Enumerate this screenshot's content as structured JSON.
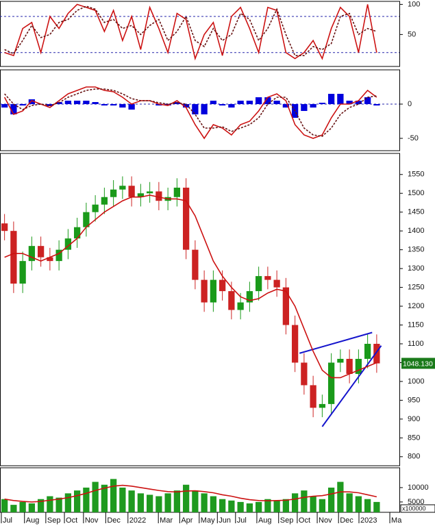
{
  "chart_data": [
    {
      "type": "line",
      "x": [
        1,
        3,
        5,
        7,
        9,
        11,
        13,
        15,
        17,
        19,
        21,
        23,
        25,
        27,
        29,
        31,
        33,
        35,
        37,
        39,
        41,
        43,
        45,
        47,
        49,
        51,
        53,
        55,
        57,
        59,
        61,
        63,
        65,
        67,
        69,
        71,
        73,
        75,
        77,
        79,
        81,
        83
      ],
      "series": [
        {
          "color": "#cc1111",
          "values": [
            20,
            15,
            60,
            70,
            20,
            80,
            60,
            85,
            100,
            95,
            90,
            55,
            90,
            40,
            80,
            25,
            95,
            60,
            20,
            85,
            75,
            10,
            50,
            70,
            15,
            80,
            95,
            60,
            20,
            95,
            90,
            20,
            10,
            20,
            40,
            10,
            60,
            95,
            80,
            20,
            100,
            20
          ]
        },
        {
          "color": "#661111",
          "dashed": true,
          "values": [
            25,
            18,
            40,
            65,
            45,
            50,
            70,
            75,
            90,
            97,
            92,
            70,
            75,
            60,
            65,
            50,
            65,
            75,
            40,
            55,
            80,
            40,
            30,
            60,
            40,
            50,
            85,
            75,
            40,
            60,
            92,
            50,
            15,
            15,
            30,
            25,
            35,
            80,
            85,
            50,
            60,
            55
          ]
        }
      ],
      "levels": [
        80,
        20
      ],
      "level_color": "#2222aa",
      "xlim": [
        0,
        88
      ],
      "ylim": [
        -3,
        105
      ],
      "yticks": [
        100,
        50
      ]
    },
    {
      "type": "line",
      "x": [
        1,
        3,
        5,
        7,
        9,
        11,
        13,
        15,
        17,
        19,
        21,
        23,
        25,
        27,
        29,
        31,
        33,
        35,
        37,
        39,
        41,
        43,
        45,
        47,
        49,
        51,
        53,
        55,
        57,
        59,
        61,
        63,
        65,
        67,
        69,
        71,
        73,
        75,
        77,
        79,
        81,
        83
      ],
      "histogram": {
        "color": "#0000dd",
        "values": [
          -5,
          -15,
          -2,
          7,
          0,
          -3,
          3,
          5,
          5,
          5,
          3,
          -2,
          -2,
          -5,
          -8,
          0,
          0,
          -2,
          -2,
          3,
          -5,
          -15,
          -15,
          5,
          -2,
          -5,
          5,
          5,
          10,
          10,
          5,
          -5,
          -20,
          -10,
          -5,
          2,
          15,
          15,
          5,
          5,
          10,
          -2
        ]
      },
      "series": [
        {
          "color": "#cc1111",
          "values": [
            10,
            -15,
            -10,
            5,
            0,
            -5,
            5,
            15,
            20,
            25,
            25,
            20,
            18,
            10,
            0,
            5,
            5,
            0,
            -2,
            5,
            -5,
            -30,
            -50,
            -30,
            -35,
            -45,
            -30,
            -25,
            -10,
            10,
            15,
            5,
            -30,
            -45,
            -50,
            -45,
            -20,
            0,
            0,
            5,
            20,
            10
          ]
        },
        {
          "color": "#661111",
          "dashed": true,
          "values": [
            15,
            0,
            -8,
            -2,
            0,
            -2,
            2,
            10,
            15,
            20,
            22,
            22,
            20,
            15,
            8,
            5,
            5,
            2,
            0,
            2,
            0,
            -15,
            -35,
            -35,
            -33,
            -40,
            -35,
            -30,
            -20,
            0,
            10,
            10,
            -10,
            -35,
            -45,
            -47,
            -35,
            -15,
            -5,
            0,
            10,
            12
          ]
        }
      ],
      "levels": [
        0
      ],
      "level_color": "#2222aa",
      "xlim": [
        0,
        88
      ],
      "ylim": [
        -68,
        50
      ],
      "yticks": [
        0,
        -50
      ]
    },
    {
      "type": "candlestick",
      "x": [
        1,
        3,
        5,
        7,
        9,
        11,
        13,
        15,
        17,
        19,
        21,
        23,
        25,
        27,
        29,
        31,
        33,
        35,
        37,
        39,
        41,
        43,
        45,
        47,
        49,
        51,
        53,
        55,
        57,
        59,
        61,
        63,
        65,
        67,
        69,
        71,
        73,
        75,
        77,
        79,
        81,
        83
      ],
      "open": [
        1420,
        1400,
        1260,
        1320,
        1360,
        1330,
        1320,
        1350,
        1380,
        1410,
        1450,
        1470,
        1490,
        1510,
        1520,
        1490,
        1500,
        1505,
        1480,
        1490,
        1515,
        1350,
        1270,
        1210,
        1270,
        1240,
        1190,
        1210,
        1240,
        1280,
        1270,
        1250,
        1150,
        1050,
        990,
        930,
        940,
        1050,
        1060,
        1020,
        1060,
        1100
      ],
      "high": [
        1445,
        1425,
        1345,
        1385,
        1385,
        1355,
        1375,
        1405,
        1435,
        1475,
        1495,
        1515,
        1535,
        1545,
        1545,
        1525,
        1530,
        1530,
        1515,
        1540,
        1540,
        1375,
        1295,
        1295,
        1295,
        1265,
        1235,
        1265,
        1305,
        1305,
        1295,
        1275,
        1175,
        1075,
        1015,
        965,
        1075,
        1085,
        1085,
        1085,
        1125,
        1125
      ],
      "low": [
        1375,
        1235,
        1235,
        1295,
        1305,
        1295,
        1295,
        1325,
        1355,
        1385,
        1425,
        1445,
        1465,
        1485,
        1465,
        1465,
        1475,
        1455,
        1455,
        1465,
        1325,
        1245,
        1185,
        1185,
        1215,
        1165,
        1165,
        1185,
        1215,
        1245,
        1225,
        1125,
        1025,
        965,
        905,
        905,
        915,
        1025,
        995,
        995,
        1035,
        1023
      ],
      "close": [
        1400,
        1260,
        1320,
        1360,
        1330,
        1320,
        1350,
        1380,
        1410,
        1450,
        1470,
        1490,
        1510,
        1520,
        1490,
        1500,
        1505,
        1480,
        1490,
        1515,
        1350,
        1270,
        1210,
        1270,
        1240,
        1190,
        1210,
        1240,
        1280,
        1270,
        1250,
        1150,
        1050,
        990,
        930,
        940,
        1050,
        1060,
        1020,
        1060,
        1100,
        1048
      ],
      "up_color": "#1a9a1a",
      "down_color": "#cc2222",
      "series": [
        {
          "color": "#cc1111",
          "values": [
            1330,
            1340,
            1340,
            1330,
            1320,
            1330,
            1340,
            1360,
            1380,
            1410,
            1430,
            1450,
            1465,
            1480,
            1490,
            1490,
            1495,
            1490,
            1485,
            1485,
            1480,
            1440,
            1380,
            1320,
            1280,
            1250,
            1225,
            1215,
            1220,
            1235,
            1245,
            1240,
            1200,
            1140,
            1080,
            1030,
            1010,
            1010,
            1020,
            1030,
            1040,
            1050
          ]
        }
      ],
      "trendlines": [
        {
          "color": "#1414cc",
          "x": [
            66,
            82
          ],
          "values": [
            1075,
            1130
          ]
        },
        {
          "color": "#1414cc",
          "x": [
            71,
            84
          ],
          "values": [
            880,
            1095
          ]
        }
      ],
      "last_price": {
        "value": 1048.13,
        "label": "1048.130"
      },
      "xlim": [
        0,
        88
      ],
      "ylim": [
        776,
        1606
      ],
      "yticks": [
        1550,
        1500,
        1450,
        1400,
        1350,
        1300,
        1250,
        1200,
        1150,
        1100,
        1050,
        1000,
        950,
        900,
        850,
        800
      ]
    },
    {
      "type": "bar",
      "x": [
        1,
        3,
        5,
        7,
        9,
        11,
        13,
        15,
        17,
        19,
        21,
        23,
        25,
        27,
        29,
        31,
        33,
        35,
        37,
        39,
        41,
        43,
        45,
        47,
        49,
        51,
        53,
        55,
        57,
        59,
        61,
        63,
        65,
        67,
        69,
        71,
        73,
        75,
        77,
        79,
        81,
        83
      ],
      "values": [
        6000,
        4000,
        5000,
        4500,
        6000,
        7000,
        6500,
        8000,
        9000,
        10000,
        12000,
        11000,
        13000,
        10000,
        9000,
        8000,
        7500,
        7000,
        8000,
        9000,
        11000,
        9000,
        8000,
        7000,
        6000,
        5500,
        5000,
        4500,
        5000,
        6000,
        5500,
        6000,
        8000,
        9000,
        7000,
        6000,
        10000,
        12000,
        8000,
        7000,
        6000,
        5000
      ],
      "color": "#1f9a1f",
      "series": [
        {
          "color": "#cc1111",
          "values": [
            6000,
            5500,
            5200,
            5000,
            5200,
            5600,
            6000,
            6500,
            7200,
            8000,
            9000,
            9800,
            10500,
            10800,
            10500,
            10000,
            9500,
            9000,
            8600,
            8500,
            8800,
            8900,
            8600,
            8200,
            7500,
            7000,
            6300,
            5800,
            5500,
            5400,
            5500,
            5600,
            6000,
            6600,
            7000,
            7200,
            7800,
            8500,
            8500,
            8200,
            7500,
            6800
          ]
        }
      ],
      "y_unit": "x100000",
      "xlim": [
        0,
        88
      ],
      "ylim": [
        1400,
        16900
      ],
      "yticks": [
        10000,
        5000
      ],
      "xticks": [
        {
          "value": 1.2,
          "label": "Jul"
        },
        {
          "value": 6.3,
          "label": "Aug"
        },
        {
          "value": 11,
          "label": "Sep"
        },
        {
          "value": 15.1,
          "label": "Oct"
        },
        {
          "value": 19.3,
          "label": "Nov"
        },
        {
          "value": 24.2,
          "label": "Dec"
        },
        {
          "value": 29.1,
          "label": "2022"
        },
        {
          "value": 35.8,
          "label": "Mar"
        },
        {
          "value": 40.5,
          "label": "Apr"
        },
        {
          "value": 44.8,
          "label": "May"
        },
        {
          "value": 48.8,
          "label": "Jun"
        },
        {
          "value": 52.8,
          "label": "Jul"
        },
        {
          "value": 57.5,
          "label": "Aug"
        },
        {
          "value": 62.3,
          "label": "Sep"
        },
        {
          "value": 66.4,
          "label": "Oct"
        },
        {
          "value": 70.8,
          "label": "Nov"
        },
        {
          "value": 75.5,
          "label": "Dec"
        },
        {
          "value": 80,
          "label": "2023"
        },
        {
          "value": 86.8,
          "label": "Ma"
        }
      ]
    }
  ]
}
